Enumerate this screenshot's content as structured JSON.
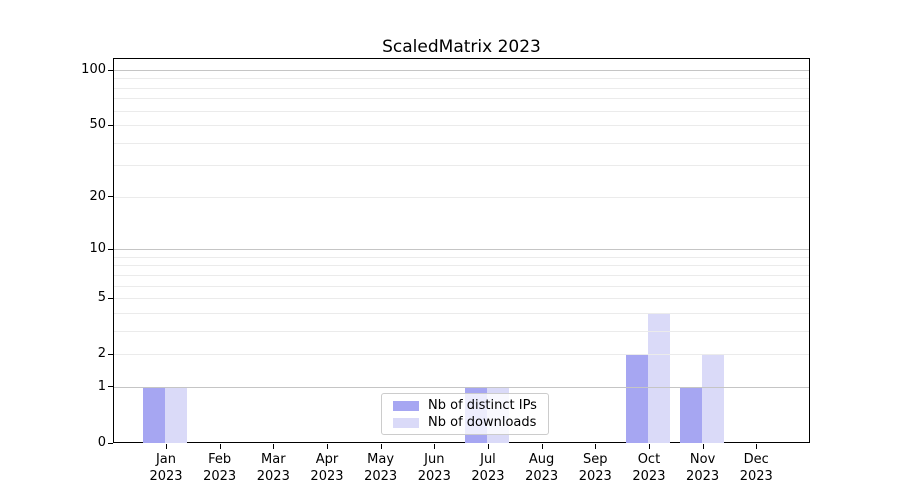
{
  "chart_data": {
    "type": "bar",
    "title": "ScaledMatrix 2023",
    "categories": [
      "Jan",
      "Feb",
      "Mar",
      "Apr",
      "May",
      "Jun",
      "Jul",
      "Aug",
      "Sep",
      "Oct",
      "Nov",
      "Dec"
    ],
    "x_tick_year": "2023",
    "series": [
      {
        "name": "Nb of distinct IPs",
        "color": "#a6a6f2",
        "values": [
          1,
          0,
          0,
          0,
          0,
          0,
          1,
          0,
          0,
          2,
          1,
          0
        ]
      },
      {
        "name": "Nb of downloads",
        "color": "#dadaf8",
        "values": [
          1,
          0,
          0,
          0,
          0,
          0,
          1,
          0,
          0,
          4,
          2,
          0
        ]
      }
    ],
    "y_axis": {
      "scale": "log1p",
      "labeled_ticks": [
        0,
        1,
        2,
        5,
        10,
        20,
        50,
        100
      ],
      "major_gridlines": [
        1,
        10,
        100
      ],
      "minor_gridlines": [
        2,
        3,
        4,
        5,
        6,
        7,
        8,
        9,
        20,
        30,
        40,
        50,
        60,
        70,
        80,
        90
      ],
      "ylim": [
        0,
        115
      ]
    },
    "legend": {
      "position": "lower center"
    },
    "grid": {
      "major_color": "#c5c5c5",
      "minor_color": "#ebebeb"
    },
    "colors": {
      "background": "#ffffff",
      "spine": "#000000"
    }
  }
}
